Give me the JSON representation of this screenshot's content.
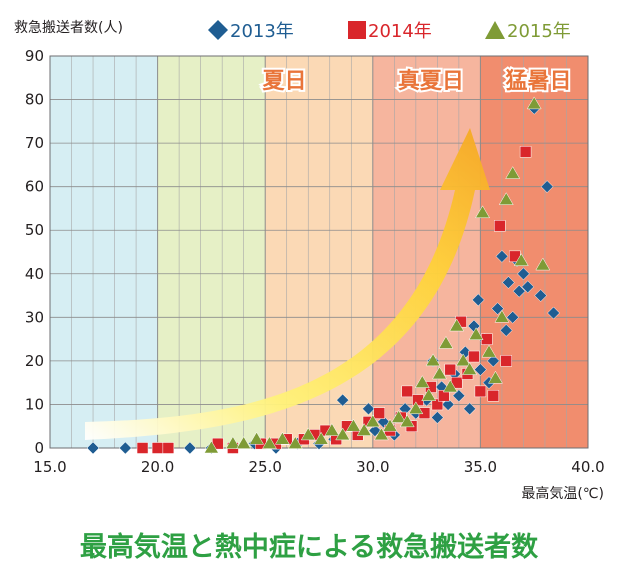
{
  "caption": "最高気温と熱中症による救急搬送者数",
  "colors": {
    "s2013": "#1f5d92",
    "s2014": "#d9262b",
    "s2015": "#7f9b36",
    "zone_label": "#e9753a",
    "caption": "#2ea043",
    "bg_cool": "#d6eef3",
    "bg_mild": "#e6f0c6",
    "bg_warm": "#fbd9b5",
    "bg_hot": "#f6b59e",
    "bg_extreme": "#f18d6e"
  },
  "chart_data": {
    "type": "scatter",
    "title": "",
    "ylabel": "救急搬送者数(人)",
    "xlabel": "最高気温(℃)",
    "xlim": [
      15,
      40
    ],
    "ylim": [
      0,
      90
    ],
    "xticks": [
      "15.0",
      "20.0",
      "25.0",
      "30.0",
      "35.0",
      "40.0"
    ],
    "yticks": [
      "0",
      "10",
      "20",
      "30",
      "40",
      "50",
      "60",
      "70",
      "80",
      "90"
    ],
    "grid": true,
    "legend_position": "top",
    "zones": [
      {
        "label": "夏日",
        "from": 25,
        "to": 30
      },
      {
        "label": "真夏日",
        "from": 30,
        "to": 35
      },
      {
        "label": "猛暑日",
        "from": 35,
        "to": 40
      }
    ],
    "series": [
      {
        "name": "2013年",
        "marker": "diamond",
        "points": [
          [
            17.0,
            0
          ],
          [
            18.5,
            0
          ],
          [
            20.2,
            0
          ],
          [
            21.5,
            0
          ],
          [
            22.5,
            0
          ],
          [
            23.5,
            0
          ],
          [
            24.5,
            1
          ],
          [
            25.5,
            0
          ],
          [
            26.5,
            1
          ],
          [
            27.5,
            1
          ],
          [
            28.2,
            2
          ],
          [
            28.6,
            11
          ],
          [
            29.3,
            3
          ],
          [
            29.8,
            9
          ],
          [
            30.1,
            4
          ],
          [
            30.5,
            6
          ],
          [
            31.0,
            3
          ],
          [
            31.5,
            9
          ],
          [
            32.0,
            8
          ],
          [
            32.5,
            11
          ],
          [
            32.8,
            20
          ],
          [
            33.0,
            7
          ],
          [
            33.2,
            14
          ],
          [
            33.5,
            10
          ],
          [
            33.8,
            17
          ],
          [
            34.0,
            12
          ],
          [
            34.3,
            22
          ],
          [
            34.5,
            9
          ],
          [
            34.7,
            28
          ],
          [
            34.9,
            34
          ],
          [
            35.0,
            18
          ],
          [
            35.2,
            25
          ],
          [
            35.4,
            15
          ],
          [
            35.6,
            20
          ],
          [
            35.8,
            32
          ],
          [
            36.0,
            44
          ],
          [
            36.2,
            27
          ],
          [
            36.3,
            38
          ],
          [
            36.5,
            30
          ],
          [
            36.7,
            43
          ],
          [
            36.8,
            36
          ],
          [
            37.0,
            40
          ],
          [
            37.2,
            37
          ],
          [
            37.5,
            78
          ],
          [
            37.8,
            35
          ],
          [
            38.1,
            60
          ],
          [
            38.4,
            31
          ]
        ]
      },
      {
        "name": "2014年",
        "marker": "square",
        "points": [
          [
            19.3,
            0
          ],
          [
            20.0,
            0
          ],
          [
            20.5,
            0
          ],
          [
            22.8,
            1
          ],
          [
            23.5,
            0
          ],
          [
            24.8,
            1
          ],
          [
            25.5,
            1
          ],
          [
            26.0,
            2
          ],
          [
            26.8,
            2
          ],
          [
            27.3,
            3
          ],
          [
            27.8,
            4
          ],
          [
            28.3,
            2
          ],
          [
            28.8,
            5
          ],
          [
            29.3,
            3
          ],
          [
            29.8,
            6
          ],
          [
            30.3,
            8
          ],
          [
            30.8,
            4
          ],
          [
            31.3,
            7
          ],
          [
            31.6,
            13
          ],
          [
            31.8,
            5
          ],
          [
            32.1,
            11
          ],
          [
            32.4,
            8
          ],
          [
            32.7,
            14
          ],
          [
            33.0,
            10
          ],
          [
            33.3,
            12
          ],
          [
            33.6,
            18
          ],
          [
            33.9,
            15
          ],
          [
            34.1,
            29
          ],
          [
            34.4,
            17
          ],
          [
            34.7,
            21
          ],
          [
            35.0,
            13
          ],
          [
            35.3,
            25
          ],
          [
            35.6,
            12
          ],
          [
            35.9,
            51
          ],
          [
            36.2,
            20
          ],
          [
            36.6,
            44
          ],
          [
            37.1,
            68
          ]
        ]
      },
      {
        "name": "2015年",
        "marker": "triangle",
        "points": [
          [
            22.5,
            0
          ],
          [
            23.5,
            1
          ],
          [
            24.0,
            1
          ],
          [
            24.6,
            2
          ],
          [
            25.2,
            1
          ],
          [
            25.8,
            2
          ],
          [
            26.4,
            1
          ],
          [
            27.0,
            3
          ],
          [
            27.6,
            2
          ],
          [
            28.1,
            4
          ],
          [
            28.6,
            3
          ],
          [
            29.1,
            5
          ],
          [
            29.6,
            4
          ],
          [
            30.0,
            6
          ],
          [
            30.4,
            3
          ],
          [
            30.8,
            5
          ],
          [
            31.2,
            7
          ],
          [
            31.6,
            6
          ],
          [
            32.0,
            9
          ],
          [
            32.3,
            15
          ],
          [
            32.6,
            12
          ],
          [
            32.8,
            20
          ],
          [
            33.1,
            17
          ],
          [
            33.4,
            24
          ],
          [
            33.6,
            14
          ],
          [
            33.9,
            28
          ],
          [
            34.2,
            20
          ],
          [
            34.5,
            18
          ],
          [
            34.8,
            26
          ],
          [
            35.1,
            54
          ],
          [
            35.4,
            22
          ],
          [
            35.7,
            16
          ],
          [
            36.0,
            30
          ],
          [
            36.2,
            57
          ],
          [
            36.5,
            63
          ],
          [
            36.9,
            43
          ],
          [
            37.5,
            79
          ],
          [
            37.9,
            42
          ]
        ]
      }
    ]
  }
}
